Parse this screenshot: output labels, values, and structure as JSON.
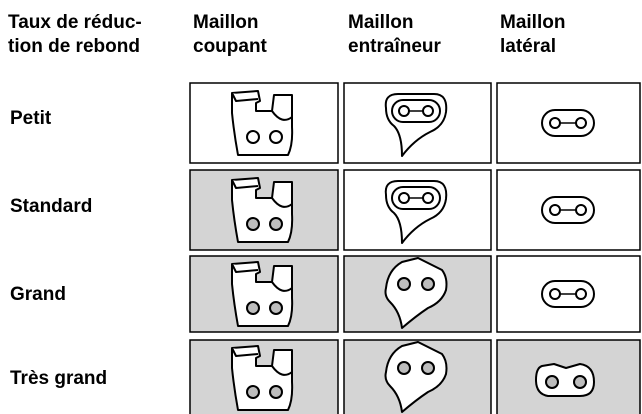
{
  "table": {
    "header": [
      [
        "Taux de réduc-",
        "tion de rebond"
      ],
      [
        "Maillon",
        "coupant"
      ],
      [
        "Maillon",
        "entraîneur"
      ],
      [
        "Maillon",
        "latéral"
      ]
    ],
    "rows": [
      "Petit",
      "Standard",
      "Grand",
      "Très grand"
    ]
  }
}
